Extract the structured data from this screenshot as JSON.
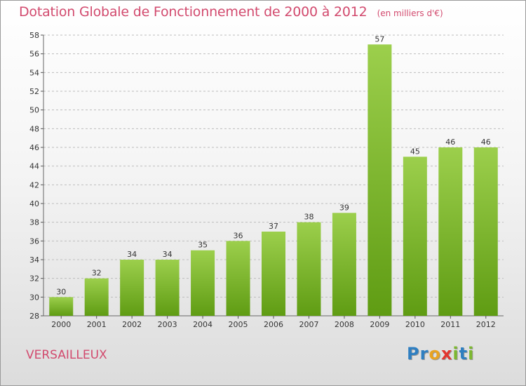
{
  "header": {
    "title": "Dotation Globale de Fonctionnement de 2000 à 2012",
    "unit": "(en milliers d'€)"
  },
  "footer": {
    "commune": "VERSAILLEUX",
    "brand": "Proxiti",
    "brand_letters": [
      {
        "char": "P",
        "color": "#2f7fc1"
      },
      {
        "char": "r",
        "color": "#2f7fc1"
      },
      {
        "char": "o",
        "color": "#e8a321"
      },
      {
        "char": "x",
        "color": "#e2352f"
      },
      {
        "char": "i",
        "color": "#7cb82f"
      },
      {
        "char": "t",
        "color": "#2f7fc1"
      },
      {
        "char": "i",
        "color": "#7cb82f"
      }
    ]
  },
  "colors": {
    "title": "#d24a6e",
    "bar_top": "#9ccf4c",
    "bar_bottom": "#5f9c13",
    "grid": "#bdbdbd"
  },
  "chart_data": {
    "type": "bar",
    "categories": [
      "2000",
      "2001",
      "2002",
      "2003",
      "2004",
      "2005",
      "2006",
      "2007",
      "2008",
      "2009",
      "2010",
      "2011",
      "2012"
    ],
    "values": [
      30,
      32,
      34,
      34,
      35,
      36,
      37,
      38,
      39,
      57,
      45,
      46,
      46
    ],
    "data_labels": [
      "30",
      "32",
      "34",
      "34",
      "35",
      "36",
      "37",
      "38",
      "39",
      "57",
      "45",
      "46",
      "46"
    ],
    "title": "Dotation Globale de Fonctionnement de 2000 à 2012",
    "ylim": [
      28,
      58
    ],
    "yticks": [
      28,
      30,
      32,
      34,
      36,
      38,
      40,
      42,
      44,
      46,
      48,
      50,
      52,
      54,
      56,
      58
    ],
    "grid": "horizontal dashed",
    "legend": "none"
  }
}
